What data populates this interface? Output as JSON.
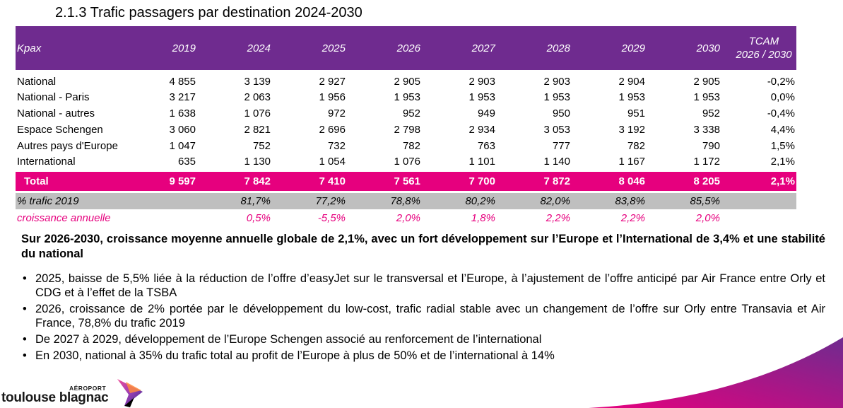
{
  "title": "2.1.3 Trafic passagers par destination 2024-2030",
  "table": {
    "headers": [
      "Kpax",
      "2019",
      "2024",
      "2025",
      "2026",
      "2027",
      "2028",
      "2029",
      "2030"
    ],
    "tcam_header": [
      "TCAM",
      "2026 / 2030"
    ],
    "rows": [
      {
        "label": "National",
        "values": [
          "4 855",
          "3 139",
          "2 927",
          "2 905",
          "2 903",
          "2 903",
          "2 904",
          "2 905"
        ],
        "tcam": "-0,2%"
      },
      {
        "label": "National - Paris",
        "values": [
          "3 217",
          "2 063",
          "1 956",
          "1 953",
          "1 953",
          "1 953",
          "1 953",
          "1 953"
        ],
        "tcam": "0,0%"
      },
      {
        "label": "National - autres",
        "values": [
          "1 638",
          "1 076",
          "972",
          "952",
          "949",
          "950",
          "951",
          "952"
        ],
        "tcam": "-0,4%"
      },
      {
        "label": "Espace Schengen",
        "values": [
          "3 060",
          "2 821",
          "2 696",
          "2 798",
          "2 934",
          "3 053",
          "3 192",
          "3 338"
        ],
        "tcam": "4,4%"
      },
      {
        "label": "Autres pays d'Europe",
        "values": [
          "1 047",
          "752",
          "732",
          "782",
          "763",
          "777",
          "782",
          "790"
        ],
        "tcam": "1,5%"
      },
      {
        "label": "International",
        "values": [
          "635",
          "1 130",
          "1 054",
          "1 076",
          "1 101",
          "1 140",
          "1 167",
          "1 172"
        ],
        "tcam": "2,1%"
      }
    ],
    "total": {
      "label": "Total",
      "values": [
        "9 597",
        "7 842",
        "7 410",
        "7 561",
        "7 700",
        "7 872",
        "8 046",
        "8 205"
      ],
      "tcam": "2,1%"
    },
    "pct_trafic": {
      "label": "% trafic 2019",
      "values": [
        "",
        "81,7%",
        "77,2%",
        "78,8%",
        "80,2%",
        "82,0%",
        "83,8%",
        "85,5%"
      ],
      "tcam": ""
    },
    "croissance": {
      "label": "croissance annuelle",
      "values": [
        "",
        "0,5%",
        "-5,5%",
        "2,0%",
        "1,8%",
        "2,2%",
        "2,2%",
        "2,0%"
      ],
      "tcam": ""
    }
  },
  "summary": "Sur 2026-2030, croissance moyenne annuelle globale de 2,1%, avec un fort développement sur l’Europe et l’International de 3,4% et une stabilité du national",
  "bullets": [
    "2025, baisse de 5,5% liée à la réduction de l’offre d’easyJet sur le transversal et l’Europe, à l’ajustement de l’offre anticipé par Air France entre Orly et CDG et à l’effet de la TSBA",
    "2026, croissance de 2% portée par le développement du low-cost, trafic radial stable avec un changement de l’offre sur Orly entre Transavia  et Air France, 78,8% du trafic 2019",
    "De 2027 à 2029, développement de l’Europe Schengen associé au renforcement de l’international",
    "En 2030, national à 35% du trafic total au profit de l’Europe à plus de 50% et de l’international à 14%"
  ],
  "logo": {
    "super": "AÉROPORT",
    "name": "toulouse blagnac"
  },
  "colors": {
    "purple": "#6f2b8f",
    "magenta": "#e6007e",
    "grey": "#bfbfbf"
  }
}
